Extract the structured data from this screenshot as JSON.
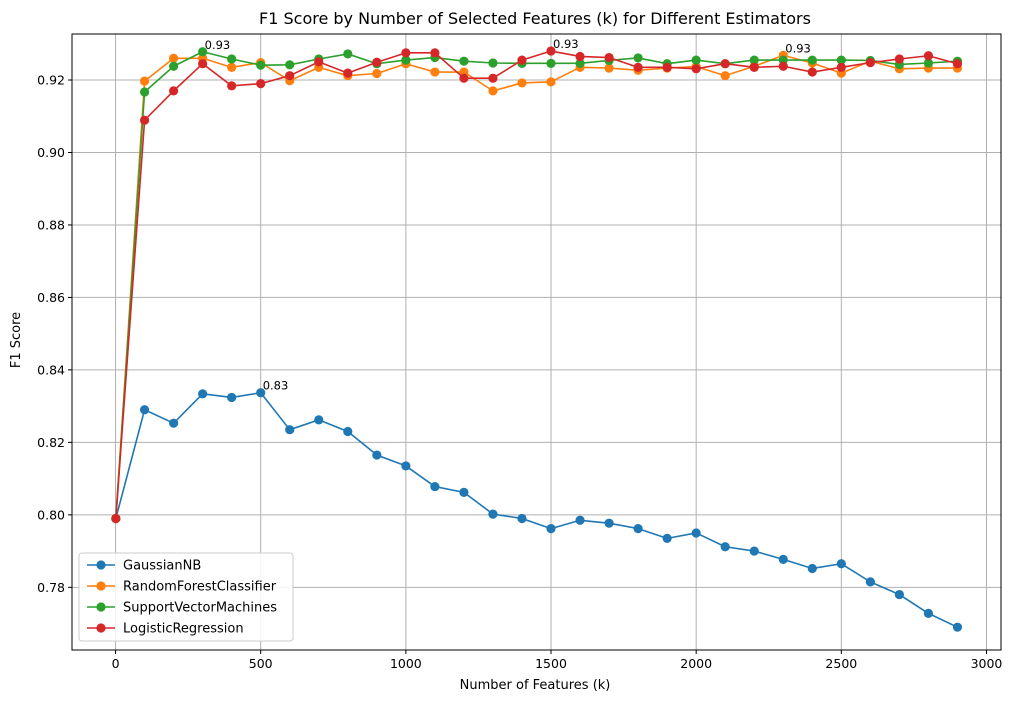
{
  "chart_data": {
    "type": "line",
    "title": "F1 Score by Number of Selected Features (k) for Different Estimators",
    "xlabel": "Number of Features (k)",
    "ylabel": "F1 Score",
    "xlim": [
      -150,
      3050
    ],
    "ylim": [
      0.7627,
      0.9327
    ],
    "xticks": [
      0,
      500,
      1000,
      1500,
      2000,
      2500,
      3000
    ],
    "xtick_labels": [
      "0",
      "500",
      "1000",
      "1500",
      "2000",
      "2500",
      "3000"
    ],
    "yticks": [
      0.78,
      0.8,
      0.82,
      0.84,
      0.86,
      0.88,
      0.9,
      0.92
    ],
    "ytick_labels": [
      "0.78",
      "0.80",
      "0.82",
      "0.84",
      "0.86",
      "0.88",
      "0.90",
      "0.92"
    ],
    "grid": true,
    "legend_position": "lower-left",
    "x": [
      1,
      100,
      200,
      300,
      400,
      500,
      600,
      700,
      800,
      900,
      1000,
      1100,
      1200,
      1300,
      1400,
      1500,
      1600,
      1700,
      1800,
      1900,
      2000,
      2100,
      2200,
      2300,
      2400,
      2500,
      2600,
      2700,
      2800,
      2900
    ],
    "series": [
      {
        "name": "GaussianNB",
        "color": "#1f77b4",
        "values": [
          0.799,
          0.829,
          0.8253,
          0.8334,
          0.8324,
          0.8337,
          0.8235,
          0.8262,
          0.823,
          0.8165,
          0.8135,
          0.8078,
          0.8062,
          0.8002,
          0.799,
          0.7962,
          0.7985,
          0.7977,
          0.7962,
          0.7935,
          0.795,
          0.7912,
          0.79,
          0.7877,
          0.7852,
          0.7865,
          0.7815,
          0.778,
          0.7728,
          0.769
        ]
      },
      {
        "name": "RandomForestClassifier",
        "color": "#ff7f0e",
        "values": [
          0.799,
          0.9197,
          0.926,
          0.926,
          0.9235,
          0.9248,
          0.9198,
          0.9235,
          0.9212,
          0.9218,
          0.9245,
          0.9222,
          0.9222,
          0.917,
          0.9192,
          0.9195,
          0.9235,
          0.9233,
          0.9227,
          0.9233,
          0.9237,
          0.9212,
          0.9238,
          0.9268,
          0.9247,
          0.9219,
          0.9252,
          0.9231,
          0.9233,
          0.9233
        ]
      },
      {
        "name": "SupportVectorMachines",
        "color": "#2ca02c",
        "values": [
          0.799,
          0.9167,
          0.9238,
          0.9278,
          0.9258,
          0.9241,
          0.9242,
          0.9258,
          0.9272,
          0.9245,
          0.9255,
          0.9262,
          0.9252,
          0.9247,
          0.9246,
          0.9246,
          0.9246,
          0.9254,
          0.9261,
          0.9245,
          0.9255,
          0.9245,
          0.9255,
          0.9255,
          0.9255,
          0.9255,
          0.9254,
          0.9243,
          0.9247,
          0.9252
        ]
      },
      {
        "name": "LogisticRegression",
        "color": "#d62728",
        "values": [
          0.799,
          0.9089,
          0.917,
          0.9245,
          0.9184,
          0.919,
          0.9212,
          0.925,
          0.9219,
          0.9249,
          0.9275,
          0.9275,
          0.9205,
          0.9205,
          0.9255,
          0.928,
          0.9265,
          0.9262,
          0.9235,
          0.9235,
          0.9231,
          0.9245,
          0.9235,
          0.9238,
          0.9222,
          0.9235,
          0.9248,
          0.9258,
          0.9267,
          0.9245
        ]
      }
    ],
    "annotations": [
      {
        "text": "0.93",
        "x": 300,
        "y": 0.9278
      },
      {
        "text": "0.93",
        "x": 1500,
        "y": 0.928
      },
      {
        "text": "0.93",
        "x": 2300,
        "y": 0.9268
      },
      {
        "text": "0.83",
        "x": 500,
        "y": 0.8337
      }
    ]
  }
}
